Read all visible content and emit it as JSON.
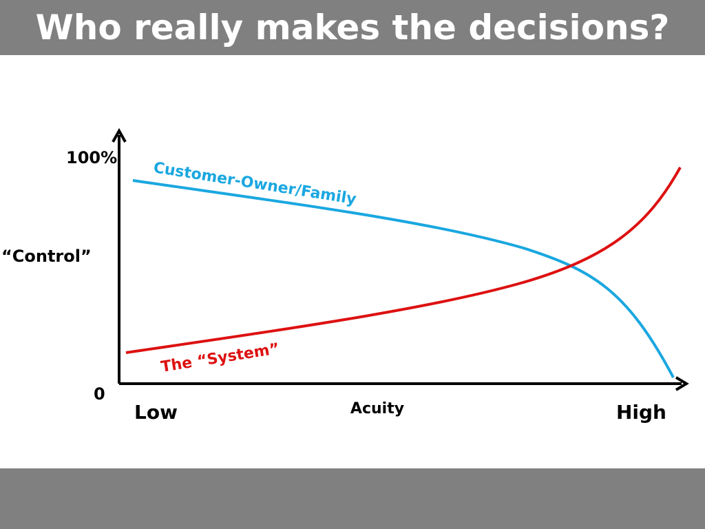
{
  "header": {
    "title": "Who really makes the decisions?"
  },
  "diagram": {
    "y_axis_label": "“Control”",
    "y_top_label": "100%",
    "y_bottom_label": "0",
    "x_left_label": "Low",
    "x_axis_label": "Acuity",
    "x_right_label": "High",
    "curves": [
      {
        "label": "Customer-Owner/Family"
      },
      {
        "label": "The “System”"
      }
    ]
  }
}
